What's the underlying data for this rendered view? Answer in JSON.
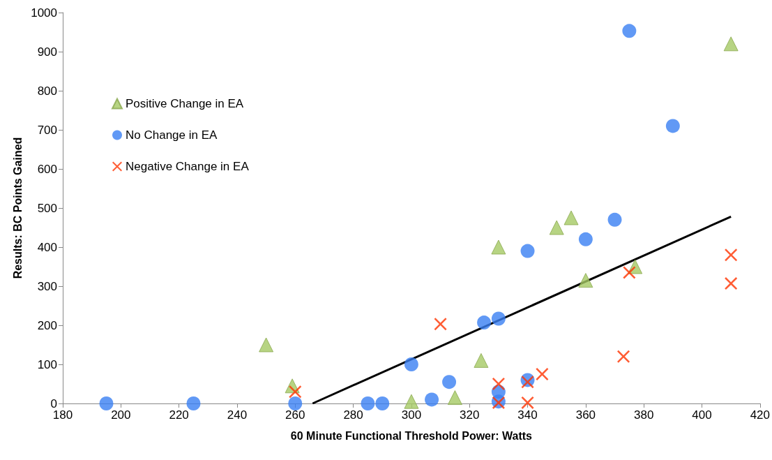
{
  "chart_data": {
    "type": "scatter",
    "xlabel": "60 Minute Functional Threshold Power: Watts",
    "ylabel": "Results: BC Points Gained",
    "xlim": [
      180,
      420
    ],
    "xticks": [
      180,
      200,
      220,
      240,
      260,
      280,
      300,
      320,
      340,
      360,
      380,
      400,
      420
    ],
    "ylim": [
      0,
      1000
    ],
    "yticks": [
      0,
      100,
      200,
      300,
      400,
      500,
      600,
      700,
      800,
      900,
      1000
    ],
    "grid": false,
    "legend": "top left",
    "series": [
      {
        "name": "Positive Change in EA",
        "color": "#a5c964",
        "marker": "triangle",
        "x": [
          250,
          259,
          300,
          315,
          324,
          330,
          350,
          355,
          360,
          377,
          410
        ],
        "values": [
          150,
          45,
          5,
          15,
          110,
          400,
          450,
          475,
          315,
          350,
          920
        ]
      },
      {
        "name": "No Change in EA",
        "color": "#3a7ff2",
        "marker": "circle",
        "x": [
          195,
          225,
          260,
          285,
          290,
          300,
          307,
          313,
          325,
          330,
          330,
          330,
          340,
          340,
          360,
          370,
          375,
          390
        ],
        "values": [
          0,
          0,
          0,
          0,
          0,
          100,
          10,
          55,
          207,
          217,
          30,
          5,
          60,
          390,
          420,
          470,
          953,
          710
        ]
      },
      {
        "name": "Negative Change in EA",
        "color": "#ff3300",
        "marker": "cross",
        "x": [
          260,
          310,
          330,
          330,
          340,
          340,
          345,
          373,
          375,
          410,
          410
        ],
        "values": [
          30,
          203,
          50,
          2,
          55,
          2,
          75,
          120,
          335,
          380,
          307
        ]
      },
      {
        "type": "line",
        "color": "#000000",
        "marker": "none",
        "x": [
          266,
          410
        ],
        "values": [
          0,
          478
        ]
      }
    ]
  }
}
